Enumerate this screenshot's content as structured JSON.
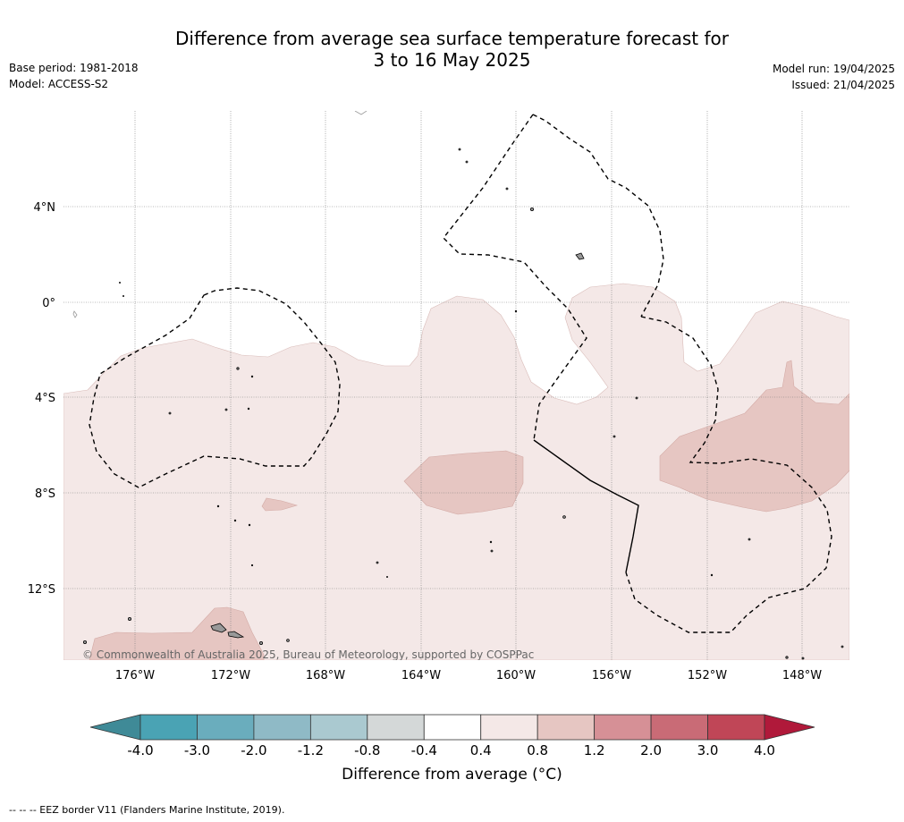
{
  "header": {
    "title_line1": "Difference from average sea surface temperature forecast for",
    "title_line2": "3 to 16 May 2025",
    "base_period": "Base period: 1981-2018",
    "model": "Model: ACCESS-S2",
    "model_run": "Model run: 19/04/2025",
    "issued": "Issued: 21/04/2025"
  },
  "map": {
    "lat_labels": [
      "4°N",
      "0°",
      "4°S",
      "8°S",
      "12°S"
    ],
    "lon_labels": [
      "176°W",
      "172°W",
      "168°W",
      "164°W",
      "160°W",
      "156°W",
      "152°W",
      "148°W"
    ],
    "copyright": "© Commonwealth of Australia 2025, Bureau of Meteorology, supported by COSPPac"
  },
  "colorbar": {
    "ticks": [
      "-4.0",
      "-3.0",
      "-2.0",
      "-1.2",
      "-0.8",
      "-0.4",
      "0.4",
      "0.8",
      "1.2",
      "2.0",
      "3.0",
      "4.0"
    ],
    "colors": [
      "#3f8a97",
      "#4aa3b4",
      "#6aadbd",
      "#8fbac6",
      "#aac9d0",
      "#d4d8d8",
      "#ffffff",
      "#f4e8e7",
      "#e6c6c2",
      "#d69096",
      "#c96b76",
      "#c04657",
      "#b0193a"
    ],
    "label": "Difference from average (°C)"
  },
  "legend_note": "--  --  -- EEZ border V11 (Flanders Marine Institute, 2019)."
}
